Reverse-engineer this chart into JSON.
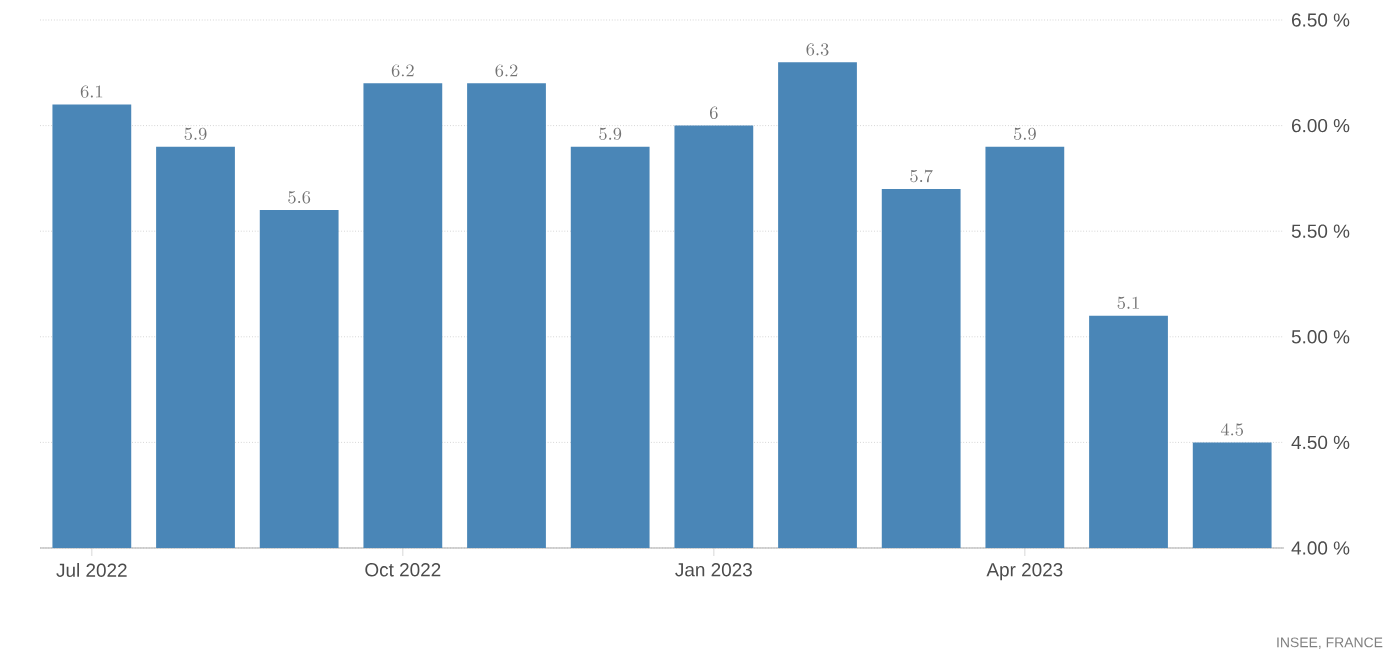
{
  "chart_data": {
    "type": "bar",
    "categories": [
      "Jul 2022",
      null,
      null,
      "Oct 2022",
      null,
      null,
      "Jan 2023",
      null,
      null,
      "Apr 2023",
      null,
      null
    ],
    "values": [
      6.1,
      5.9,
      5.6,
      6.2,
      6.2,
      5.9,
      6,
      6.3,
      5.7,
      5.9,
      5.1,
      4.5
    ],
    "color": "#4a86b7",
    "data_labels": true,
    "ylim": [
      4,
      6.5
    ],
    "yticks": [
      {
        "value": 4,
        "label": "4.00 %"
      },
      {
        "value": 4.5,
        "label": "4.50 %"
      },
      {
        "value": 5,
        "label": "5.00 %"
      },
      {
        "value": 5.5,
        "label": "5.50 %"
      },
      {
        "value": 6,
        "label": "6.00 %"
      },
      {
        "value": 6.5,
        "label": "6.50 %"
      }
    ],
    "grid": "y",
    "annotations": [
      "INSEE, FRANCE"
    ]
  }
}
